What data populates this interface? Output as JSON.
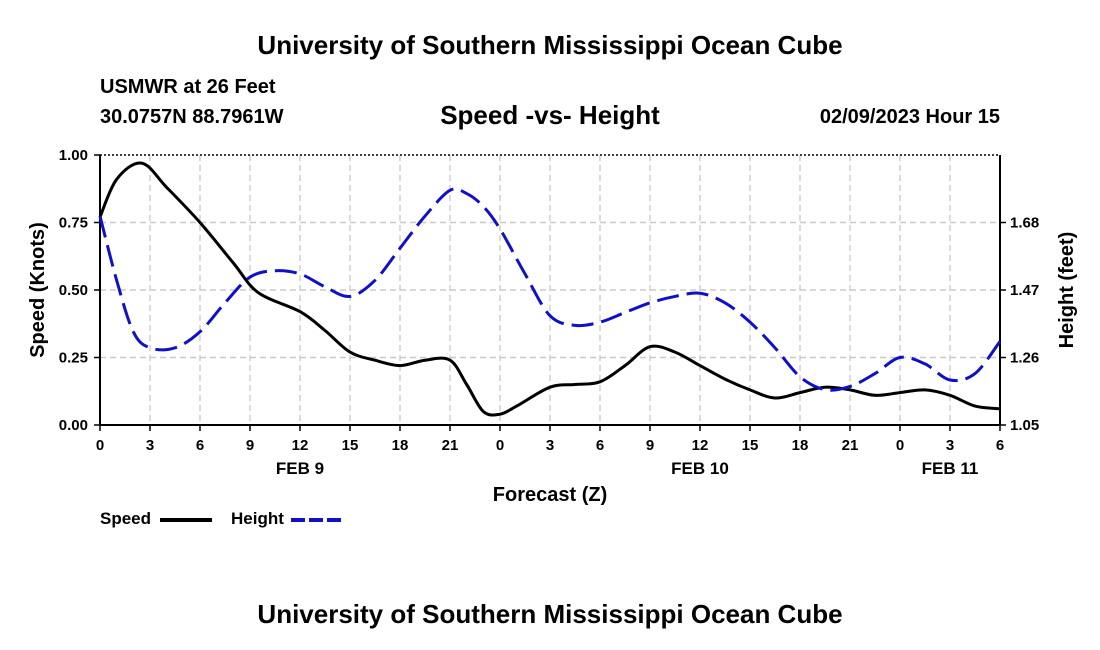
{
  "header": {
    "title": "University of Southern Mississippi Ocean Cube",
    "station": "USMWR at 26 Feet",
    "coords": "30.0757N  88.7961W",
    "subtitle": "Speed -vs- Height",
    "datetime": "02/09/2023 Hour 15"
  },
  "footer": {
    "title": "University of Southern Mississippi Ocean Cube"
  },
  "legend": {
    "speed_label": "Speed",
    "height_label": "Height"
  },
  "colors": {
    "speed": "#000000",
    "height": "#1010c8",
    "grid": "#c8c8c8"
  },
  "chart_data": {
    "type": "line",
    "title": "Speed -vs- Height",
    "xlabel": "Forecast (Z)",
    "ylabel": "Speed (Knots)",
    "y2label": "Height (feet)",
    "x_range": [
      0,
      54
    ],
    "ylim": [
      0,
      1
    ],
    "y2lim": [
      1.05,
      1.89
    ],
    "x_ticks": [
      0,
      3,
      6,
      9,
      12,
      15,
      18,
      21,
      24,
      27,
      30,
      33,
      36,
      39,
      42,
      45,
      48,
      51,
      54
    ],
    "x_tick_labels": [
      "0",
      "3",
      "6",
      "9",
      "12",
      "15",
      "18",
      "21",
      "0",
      "3",
      "6",
      "9",
      "12",
      "15",
      "18",
      "21",
      "0",
      "3",
      "6"
    ],
    "y_ticks": [
      0,
      0.25,
      0.5,
      0.75,
      1
    ],
    "y_tick_labels": [
      "0.00",
      "0.25",
      "0.50",
      "0.75",
      "1.00"
    ],
    "y2_ticks": [
      1.05,
      1.26,
      1.47,
      1.68
    ],
    "y2_tick_labels": [
      "1.05",
      "1.26",
      "1.47",
      "1.68"
    ],
    "date_labels": [
      {
        "x": 12,
        "label": "FEB 9"
      },
      {
        "x": 36,
        "label": "FEB 10"
      },
      {
        "x": 51,
        "label": "FEB 11"
      }
    ],
    "grid": true,
    "series": [
      {
        "name": "Speed",
        "axis": "left",
        "style": "solid",
        "x": [
          0,
          1,
          2.5,
          4,
          6,
          8,
          9.5,
          12,
          13.5,
          15,
          16.5,
          18,
          19.5,
          21,
          22,
          23,
          24,
          25,
          27,
          28.5,
          30,
          31.5,
          33,
          34.5,
          36,
          37.5,
          39,
          40.5,
          42,
          43.5,
          45,
          46.5,
          48,
          49.5,
          51,
          52.5,
          54
        ],
        "values": [
          0.77,
          0.91,
          0.97,
          0.88,
          0.75,
          0.6,
          0.49,
          0.42,
          0.35,
          0.27,
          0.24,
          0.22,
          0.24,
          0.24,
          0.15,
          0.05,
          0.04,
          0.07,
          0.14,
          0.15,
          0.16,
          0.22,
          0.29,
          0.27,
          0.22,
          0.17,
          0.13,
          0.1,
          0.12,
          0.14,
          0.13,
          0.11,
          0.12,
          0.13,
          0.11,
          0.07,
          0.06
        ]
      },
      {
        "name": "Height",
        "axis": "right",
        "style": "dashed",
        "x": [
          0,
          1,
          2,
          3,
          4.5,
          6,
          7.5,
          9,
          10.5,
          12,
          13.5,
          15,
          16.5,
          18,
          19.5,
          21,
          22,
          23,
          24,
          25.5,
          27,
          28.5,
          30,
          31.5,
          33,
          34.5,
          36,
          37.5,
          39,
          40.5,
          42,
          43.5,
          45,
          46.5,
          48,
          49.5,
          51,
          52.5,
          54
        ],
        "values": [
          1.7,
          1.5,
          1.34,
          1.29,
          1.29,
          1.34,
          1.43,
          1.51,
          1.53,
          1.52,
          1.48,
          1.45,
          1.5,
          1.6,
          1.7,
          1.78,
          1.77,
          1.73,
          1.66,
          1.52,
          1.39,
          1.36,
          1.37,
          1.4,
          1.43,
          1.45,
          1.46,
          1.43,
          1.37,
          1.29,
          1.2,
          1.16,
          1.17,
          1.21,
          1.26,
          1.24,
          1.19,
          1.21,
          1.31
        ]
      }
    ]
  }
}
